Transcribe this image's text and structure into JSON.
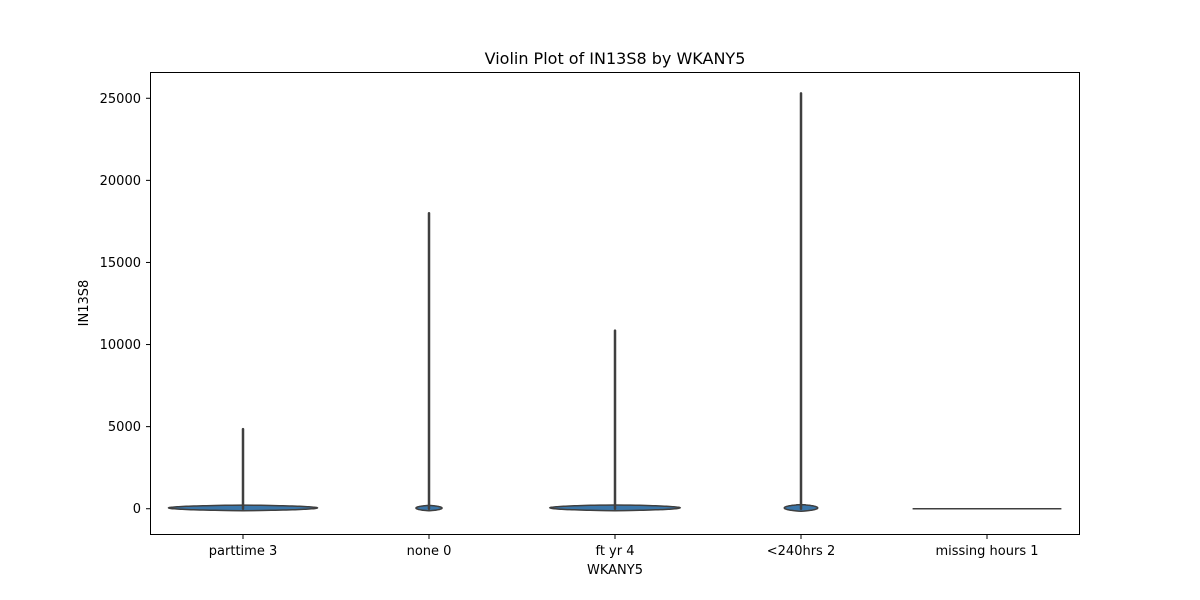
{
  "chart_data": {
    "type": "violin",
    "title": "Violin Plot of IN13S8 by WKANY5",
    "xlabel": "WKANY5",
    "ylabel": "IN13S8",
    "ylim": [
      -1600,
      26600
    ],
    "yticks": [
      0,
      5000,
      10000,
      15000,
      20000,
      25000
    ],
    "ytick_labels": [
      "0",
      "5000",
      "10000",
      "15000",
      "20000",
      "25000"
    ],
    "categories": [
      "parttime 3",
      "none 0",
      "ft yr 4",
      "<240hrs 2",
      "missing hours 1"
    ],
    "violins": [
      {
        "category": "parttime 3",
        "min": 0,
        "max": 4850,
        "max_half_width_cat": 0.4,
        "density_peak": 20,
        "density_spread": 200
      },
      {
        "category": "none 0",
        "min": 0,
        "max": 18000,
        "max_half_width_cat": 0.07,
        "density_peak": 0,
        "density_spread": 200
      },
      {
        "category": "ft yr 4",
        "min": 0,
        "max": 10850,
        "max_half_width_cat": 0.35,
        "density_peak": 30,
        "density_spread": 200
      },
      {
        "category": "<240hrs 2",
        "min": 0,
        "max": 25300,
        "max_half_width_cat": 0.09,
        "density_peak": 0,
        "density_spread": 250
      },
      {
        "category": "missing hours 1",
        "min": 0,
        "max": 0,
        "max_half_width_cat": 0.4,
        "density_peak": 0,
        "density_spread": 0
      }
    ],
    "fill_color": "#3a75a8",
    "edge_color": "#3f3f3f",
    "grid": false,
    "legend": "none"
  }
}
